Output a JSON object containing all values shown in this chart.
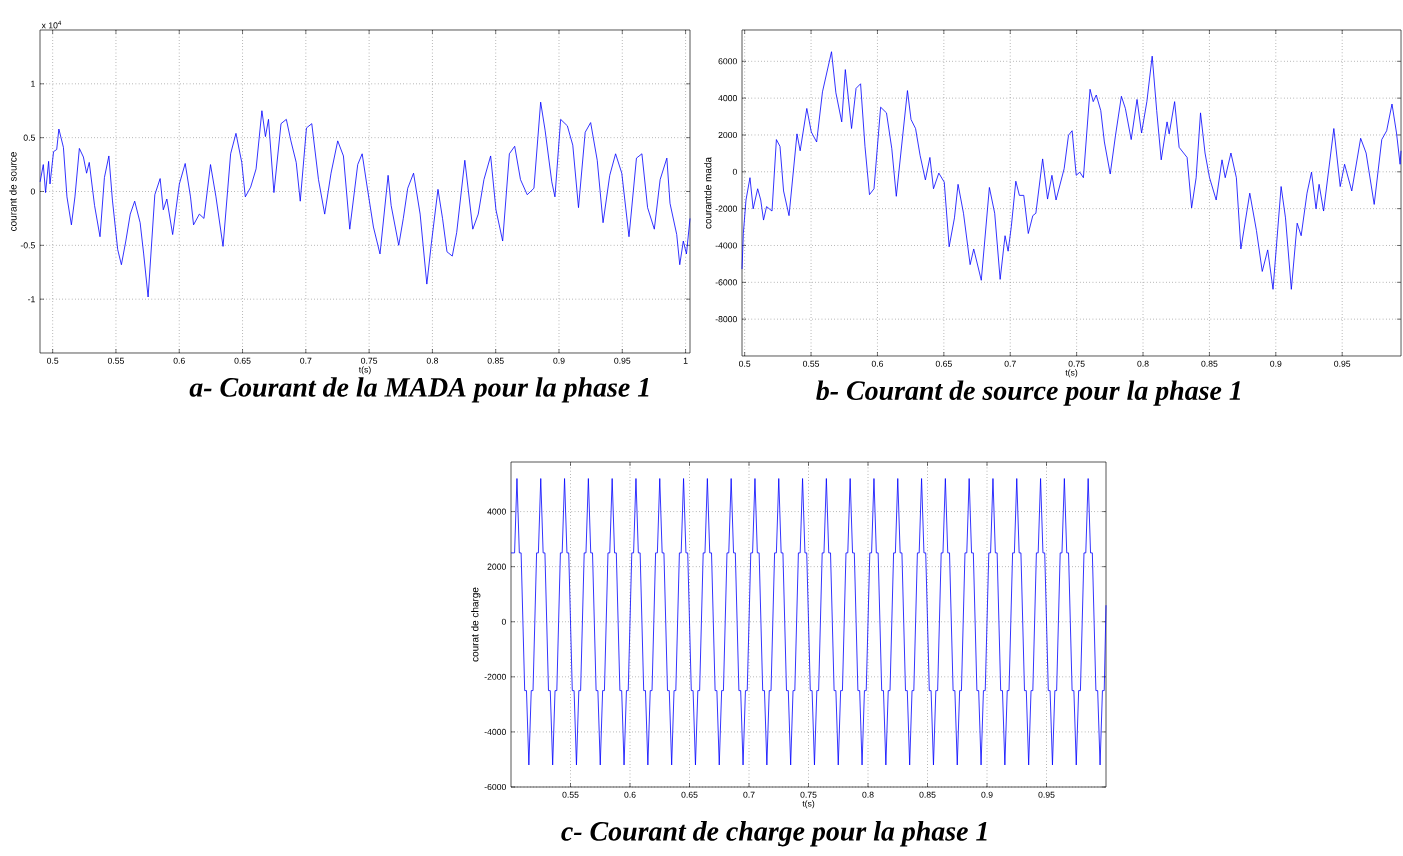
{
  "chart_data": [
    {
      "type": "line",
      "title": "a-   Courant de la MADA pour la phase 1",
      "xlabel": "t(s)",
      "ylabel": "courant de source",
      "annotations": [
        "x 10$^{4}$"
      ],
      "color": "#0000ff",
      "grid": true,
      "xlim": [
        0.49,
        1.0035
      ],
      "ylim": [
        -1.5,
        1.5
      ],
      "xticks": [
        0.5,
        0.55,
        0.6,
        0.65,
        0.7,
        0.75,
        0.8,
        0.85,
        0.9,
        0.95,
        1
      ],
      "yticks": [
        -1,
        -0.5,
        0,
        0.5,
        1
      ],
      "x": [
        0.4901,
        0.4926,
        0.4944,
        0.4968,
        0.4979,
        0.5007,
        0.5032,
        0.5049,
        0.5085,
        0.5113,
        0.5148,
        0.5176,
        0.5211,
        0.5243,
        0.5268,
        0.5289,
        0.5331,
        0.5374,
        0.5409,
        0.5444,
        0.5472,
        0.5514,
        0.5543,
        0.5578,
        0.5613,
        0.5648,
        0.5691,
        0.5719,
        0.5754,
        0.5807,
        0.5849,
        0.5874,
        0.5902,
        0.5948,
        0.5976,
        0.6001,
        0.6047,
        0.6089,
        0.6113,
        0.6159,
        0.6195,
        0.6247,
        0.629,
        0.6346,
        0.6406,
        0.6448,
        0.6494,
        0.6522,
        0.6564,
        0.6607,
        0.6653,
        0.6681,
        0.6705,
        0.6748,
        0.6804,
        0.6846,
        0.6882,
        0.6924,
        0.6956,
        0.7005,
        0.7047,
        0.71,
        0.7149,
        0.7199,
        0.7252,
        0.7297,
        0.7347,
        0.741,
        0.7445,
        0.7481,
        0.7534,
        0.7586,
        0.765,
        0.7674,
        0.7734,
        0.777,
        0.7805,
        0.7851,
        0.7903,
        0.7956,
        0.7992,
        0.8044,
        0.808,
        0.8115,
        0.8157,
        0.8192,
        0.8256,
        0.8319,
        0.8362,
        0.8407,
        0.846,
        0.8502,
        0.8555,
        0.8608,
        0.865,
        0.8696,
        0.8749,
        0.8802,
        0.8855,
        0.889,
        0.8943,
        0.8968,
        0.9013,
        0.9066,
        0.9109,
        0.9154,
        0.9207,
        0.925,
        0.9302,
        0.9348,
        0.9401,
        0.9447,
        0.9496,
        0.9553,
        0.9612,
        0.9655,
        0.97,
        0.9753,
        0.9799,
        0.9852,
        0.9877,
        0.993,
        0.9954,
        0.9982,
        1.0007,
        1.0035
      ],
      "values": [
        0.09,
        0.25,
        -0.01,
        0.28,
        0.07,
        0.37,
        0.39,
        0.58,
        0.41,
        -0.05,
        -0.31,
        -0.05,
        0.4,
        0.32,
        0.17,
        0.27,
        -0.13,
        -0.42,
        0.13,
        0.33,
        -0.08,
        -0.54,
        -0.68,
        -0.46,
        -0.21,
        -0.09,
        -0.29,
        -0.58,
        -0.98,
        -0.03,
        0.12,
        -0.17,
        -0.07,
        -0.4,
        -0.15,
        0.07,
        0.26,
        -0.05,
        -0.31,
        -0.21,
        -0.25,
        0.25,
        -0.05,
        -0.51,
        0.35,
        0.54,
        0.27,
        -0.05,
        0.04,
        0.21,
        0.75,
        0.51,
        0.67,
        -0.01,
        0.63,
        0.67,
        0.47,
        0.27,
        -0.09,
        0.59,
        0.63,
        0.11,
        -0.21,
        0.17,
        0.47,
        0.33,
        -0.35,
        0.25,
        0.35,
        0.07,
        -0.33,
        -0.58,
        0.15,
        -0.13,
        -0.5,
        -0.25,
        0.03,
        0.17,
        -0.21,
        -0.86,
        -0.48,
        0.02,
        -0.25,
        -0.56,
        -0.6,
        -0.38,
        0.29,
        -0.35,
        -0.21,
        0.11,
        0.33,
        -0.17,
        -0.46,
        0.35,
        0.42,
        0.11,
        -0.03,
        0.03,
        0.83,
        0.57,
        0.09,
        -0.05,
        0.67,
        0.61,
        0.43,
        -0.15,
        0.55,
        0.64,
        0.29,
        -0.29,
        0.15,
        0.35,
        0.17,
        -0.42,
        0.31,
        0.35,
        -0.15,
        -0.35,
        0.11,
        0.31,
        -0.11,
        -0.4,
        -0.68,
        -0.46,
        -0.58,
        -0.25
      ]
    },
    {
      "type": "line",
      "title": "b- Courant de source pour la phase 1",
      "xlabel": "t(s)",
      "ylabel": "courantde mada",
      "color": "#0000ff",
      "grid": true,
      "xlim": [
        0.498,
        0.9943
      ],
      "ylim": [
        -10000,
        7700
      ],
      "xticks": [
        0.5,
        0.55,
        0.6,
        0.65,
        0.7,
        0.75,
        0.8,
        0.85,
        0.9,
        0.95
      ],
      "yticks": [
        -8000,
        -6000,
        -4000,
        -2000,
        0,
        2000,
        4000,
        6000
      ],
      "x": [
        0.498,
        0.499,
        0.501,
        0.504,
        0.5064,
        0.5098,
        0.5121,
        0.5142,
        0.5165,
        0.5206,
        0.5239,
        0.5266,
        0.5293,
        0.5334,
        0.5394,
        0.5418,
        0.5468,
        0.5502,
        0.5542,
        0.5586,
        0.5654,
        0.5687,
        0.5731,
        0.5758,
        0.5805,
        0.5839,
        0.5873,
        0.5906,
        0.594,
        0.5974,
        0.6024,
        0.6068,
        0.6108,
        0.6142,
        0.6226,
        0.6253,
        0.6287,
        0.6321,
        0.6361,
        0.6395,
        0.6422,
        0.6462,
        0.6503,
        0.654,
        0.658,
        0.6607,
        0.6648,
        0.6698,
        0.6725,
        0.6782,
        0.6843,
        0.6883,
        0.6924,
        0.6961,
        0.6984,
        0.7008,
        0.7042,
        0.7069,
        0.7102,
        0.7136,
        0.717,
        0.7193,
        0.7244,
        0.7281,
        0.7314,
        0.7345,
        0.7406,
        0.7439,
        0.7466,
        0.7497,
        0.7524,
        0.7551,
        0.7601,
        0.7625,
        0.7648,
        0.7682,
        0.7709,
        0.7753,
        0.7793,
        0.7837,
        0.7867,
        0.7911,
        0.7955,
        0.7989,
        0.8029,
        0.8069,
        0.8103,
        0.8137,
        0.8181,
        0.8197,
        0.8238,
        0.8272,
        0.8332,
        0.8366,
        0.84,
        0.8433,
        0.8467,
        0.8501,
        0.8551,
        0.8595,
        0.8619,
        0.8662,
        0.8703,
        0.8737,
        0.8804,
        0.8854,
        0.8898,
        0.8939,
        0.8979,
        0.904,
        0.9073,
        0.9117,
        0.9161,
        0.9191,
        0.9235,
        0.9269,
        0.9303,
        0.9326,
        0.936,
        0.9437,
        0.9485,
        0.9518,
        0.9572,
        0.9639,
        0.968,
        0.9741,
        0.9798,
        0.9835,
        0.9875,
        0.9909,
        0.9936,
        0.9943
      ],
      "values": [
        -5280,
        -3350,
        -1530,
        -320,
        -2010,
        -920,
        -1530,
        -2620,
        -1890,
        -2130,
        1750,
        1380,
        -1040,
        -2380,
        2060,
        1140,
        3440,
        2160,
        1620,
        4340,
        6520,
        4290,
        2710,
        5550,
        2350,
        4530,
        4780,
        1380,
        -1240,
        -920,
        3510,
        3200,
        1260,
        -1330,
        4410,
        2840,
        2350,
        900,
        -440,
        780,
        -920,
        -70,
        -560,
        -4070,
        -2500,
        -680,
        -2250,
        -5040,
        -4190,
        -5890,
        -850,
        -2250,
        -5840,
        -3470,
        -4310,
        -2980,
        -510,
        -1280,
        -1280,
        -3350,
        -2380,
        -2250,
        700,
        -1480,
        -190,
        -1530,
        170,
        1990,
        2230,
        -190,
        -20,
        -320,
        4480,
        3810,
        4170,
        3320,
        1620,
        -120,
        1990,
        4100,
        3440,
        1750,
        3930,
        2110,
        3810,
        6280,
        3320,
        650,
        2710,
        2060,
        3810,
        1330,
        780,
        -1960,
        -320,
        3200,
        1020,
        -320,
        -1530,
        650,
        -320,
        1020,
        -320,
        -4190,
        -1160,
        -3180,
        -5410,
        -4240,
        -6380,
        -800,
        -2500,
        -6380,
        -2790,
        -3470,
        -1160,
        -20,
        -2010,
        -680,
        -2130,
        2350,
        -800,
        410,
        -1040,
        1820,
        1020,
        -1770,
        1750,
        2230,
        3680,
        2110,
        410,
        1140
      ]
    },
    {
      "type": "line",
      "title": "c- Courant de charge pour la phase 1",
      "xlabel": "t(s)",
      "ylabel": "courat de charge",
      "color": "#0000ff",
      "grid": true,
      "xlim": [
        0.5,
        1.0
      ],
      "ylim": [
        -6000,
        5800
      ],
      "xticks": [
        0.55,
        0.6,
        0.65,
        0.7,
        0.75,
        0.8,
        0.85,
        0.9,
        0.95
      ],
      "yticks": [
        -6000,
        -4000,
        -2000,
        0,
        2000,
        4000
      ],
      "x": [
        0.5,
        0.503,
        0.505,
        0.507,
        0.5085,
        0.5115,
        0.513,
        0.515,
        0.517,
        0.5185,
        0.5215,
        0.523,
        0.525,
        0.527,
        0.5285,
        0.5315,
        0.533,
        0.535,
        0.537,
        0.5385,
        0.5415,
        0.543,
        0.545,
        0.547,
        0.5485,
        0.5515,
        0.553,
        0.555,
        0.557,
        0.5585,
        0.5615,
        0.563,
        0.565,
        0.567,
        0.5685,
        0.5715,
        0.573,
        0.575,
        0.577,
        0.5785,
        0.5815,
        0.583,
        0.585,
        0.587,
        0.5885,
        0.5915,
        0.593,
        0.595,
        0.597,
        0.5985,
        0.6015,
        0.603,
        0.605,
        0.607,
        0.6085,
        0.6115,
        0.613,
        0.615,
        0.617,
        0.6185,
        0.6215,
        0.623,
        0.625,
        0.627,
        0.6285,
        0.6315,
        0.633,
        0.635,
        0.637,
        0.6385,
        0.6415,
        0.643,
        0.645,
        0.647,
        0.6485,
        0.6515,
        0.653,
        0.655,
        0.657,
        0.6585,
        0.6615,
        0.663,
        0.665,
        0.667,
        0.6685,
        0.6715,
        0.673,
        0.675,
        0.677,
        0.6785,
        0.6815,
        0.683,
        0.685,
        0.687,
        0.6885,
        0.6915,
        0.693,
        0.695,
        0.697,
        0.6985,
        0.7015,
        0.703,
        0.705,
        0.707,
        0.7085,
        0.7115,
        0.713,
        0.715,
        0.717,
        0.7185,
        0.7215,
        0.723,
        0.725,
        0.727,
        0.7285,
        0.7315,
        0.733,
        0.735,
        0.737,
        0.7385,
        0.7415,
        0.743,
        0.745,
        0.747,
        0.7485,
        0.7515,
        0.753,
        0.755,
        0.757,
        0.7585,
        0.7615,
        0.763,
        0.765,
        0.767,
        0.7685,
        0.7715,
        0.773,
        0.775,
        0.777,
        0.7785,
        0.7815,
        0.783,
        0.785,
        0.787,
        0.7885,
        0.7915,
        0.793,
        0.795,
        0.797,
        0.7985,
        0.8015,
        0.803,
        0.805,
        0.807,
        0.8085,
        0.8115,
        0.813,
        0.815,
        0.817,
        0.8185,
        0.8215,
        0.823,
        0.825,
        0.827,
        0.8285,
        0.8315,
        0.833,
        0.835,
        0.837,
        0.8385,
        0.8415,
        0.843,
        0.845,
        0.847,
        0.8485,
        0.8515,
        0.853,
        0.855,
        0.857,
        0.8585,
        0.8615,
        0.863,
        0.865,
        0.867,
        0.8685,
        0.8715,
        0.873,
        0.875,
        0.877,
        0.8785,
        0.8815,
        0.883,
        0.885,
        0.887,
        0.8885,
        0.8915,
        0.893,
        0.895,
        0.897,
        0.8985,
        0.9015,
        0.903,
        0.905,
        0.907,
        0.9085,
        0.9115,
        0.913,
        0.915,
        0.917,
        0.9185,
        0.9215,
        0.923,
        0.925,
        0.927,
        0.9285,
        0.9315,
        0.933,
        0.935,
        0.937,
        0.9385,
        0.9415,
        0.943,
        0.945,
        0.947,
        0.9485,
        0.9515,
        0.953,
        0.955,
        0.957,
        0.9585,
        0.9615,
        0.963,
        0.965,
        0.967,
        0.9685,
        0.9715,
        0.973,
        0.975,
        0.977,
        0.9785,
        0.9815,
        0.983,
        0.985,
        0.987,
        0.9885,
        0.9915,
        0.993,
        0.995,
        0.997,
        0.9985,
        1.0
      ],
      "values": [
        2500,
        2500,
        5200,
        2500,
        2500,
        -2500,
        -2500,
        -5200,
        -2500,
        -2500,
        2500,
        2500,
        5200,
        2500,
        2500,
        -2500,
        -2500,
        -5200,
        -2500,
        -2500,
        2500,
        2500,
        5200,
        2500,
        2500,
        -2500,
        -2500,
        -5200,
        -2500,
        -2500,
        2500,
        2500,
        5200,
        2500,
        2500,
        -2500,
        -2500,
        -5200,
        -2500,
        -2500,
        2500,
        2500,
        5200,
        2500,
        2500,
        -2500,
        -2500,
        -5200,
        -2500,
        -2500,
        2500,
        2500,
        5200,
        2500,
        2500,
        -2500,
        -2500,
        -5200,
        -2500,
        -2500,
        2500,
        2500,
        5200,
        2500,
        2500,
        -2500,
        -2500,
        -5200,
        -2500,
        -2500,
        2500,
        2500,
        5200,
        2500,
        2500,
        -2500,
        -2500,
        -5200,
        -2500,
        -2500,
        2500,
        2500,
        5200,
        2500,
        2500,
        -2500,
        -2500,
        -5200,
        -2500,
        -2500,
        2500,
        2500,
        5200,
        2500,
        2500,
        -2500,
        -2500,
        -5200,
        -2500,
        -2500,
        2500,
        2500,
        5200,
        2500,
        2500,
        -2500,
        -2500,
        -5200,
        -2500,
        -2500,
        2500,
        2500,
        5200,
        2500,
        2500,
        -2500,
        -2500,
        -5200,
        -2500,
        -2500,
        2500,
        2500,
        5200,
        2500,
        2500,
        -2500,
        -2500,
        -5200,
        -2500,
        -2500,
        2500,
        2500,
        5200,
        2500,
        2500,
        -2500,
        -2500,
        -5200,
        -2500,
        -2500,
        2500,
        2500,
        5200,
        2500,
        2500,
        -2500,
        -2500,
        -5200,
        -2500,
        -2500,
        2500,
        2500,
        5200,
        2500,
        2500,
        -2500,
        -2500,
        -5200,
        -2500,
        -2500,
        2500,
        2500,
        5200,
        2500,
        2500,
        -2500,
        -2500,
        -5200,
        -2500,
        -2500,
        2500,
        2500,
        5200,
        2500,
        2500,
        -2500,
        -2500,
        -5200,
        -2500,
        -2500,
        2500,
        2500,
        5200,
        2500,
        2500,
        -2500,
        -2500,
        -5200,
        -2500,
        -2500,
        2500,
        2500,
        5200,
        2500,
        2500,
        -2500,
        -2500,
        -5200,
        -2500,
        -2500,
        2500,
        2500,
        5200,
        2500,
        2500,
        -2500,
        -2500,
        -5200,
        -2500,
        -2500,
        2500,
        2500,
        5200,
        2500,
        2500,
        -2500,
        -2500,
        -5200,
        -2500,
        -2500,
        2500,
        2500,
        5200,
        2500,
        2500,
        -2500,
        -2500,
        -5200,
        -2500,
        -2500,
        2500,
        2500,
        5200,
        2500,
        2500,
        -2500,
        -2500,
        -5200,
        -2500,
        -2500,
        2500,
        2500,
        5200,
        2500,
        2500,
        -2500,
        -2500,
        -5200,
        -2500,
        -2500,
        600
      ]
    }
  ]
}
